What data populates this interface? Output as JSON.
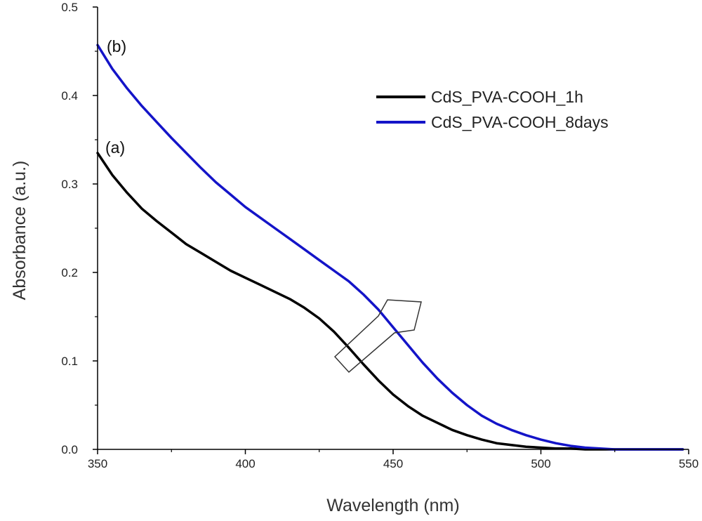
{
  "chart_data": {
    "type": "line",
    "title": "",
    "xlabel": "Wavelength (nm)",
    "ylabel": "Absorbance (a.u.)",
    "xlim": [
      350,
      550
    ],
    "ylim": [
      0.0,
      0.5
    ],
    "xticks": [
      "350",
      "400",
      "450",
      "500",
      "550"
    ],
    "yticks": [
      "0.0",
      "0.1",
      "0.2",
      "0.3",
      "0.4",
      "0.5"
    ],
    "grid": false,
    "legend_position": "top-right",
    "series": [
      {
        "name": "CdS_PVA-COOH_1h",
        "color": "#000000",
        "x": [
          350,
          355,
          360,
          365,
          370,
          375,
          380,
          385,
          390,
          395,
          400,
          405,
          410,
          415,
          420,
          425,
          430,
          435,
          440,
          445,
          450,
          455,
          460,
          465,
          470,
          475,
          480,
          485,
          490,
          495,
          500,
          505,
          510,
          515,
          520,
          525,
          530,
          535,
          540,
          545,
          548
        ],
        "y": [
          0.335,
          0.31,
          0.29,
          0.272,
          0.258,
          0.245,
          0.232,
          0.222,
          0.212,
          0.202,
          0.194,
          0.186,
          0.178,
          0.17,
          0.16,
          0.148,
          0.133,
          0.115,
          0.096,
          0.078,
          0.062,
          0.049,
          0.038,
          0.03,
          0.022,
          0.016,
          0.011,
          0.007,
          0.005,
          0.003,
          0.002,
          0.001,
          0.001,
          0.0,
          0.0,
          0.0,
          0.0,
          0.0,
          0.0,
          0.0,
          0.0
        ]
      },
      {
        "name": "CdS_PVA-COOH_8days",
        "color": "#1414c8",
        "x": [
          350,
          355,
          360,
          365,
          370,
          375,
          380,
          385,
          390,
          395,
          400,
          405,
          410,
          415,
          420,
          425,
          430,
          435,
          440,
          445,
          450,
          455,
          460,
          465,
          470,
          475,
          480,
          485,
          490,
          495,
          500,
          505,
          510,
          515,
          520,
          525,
          530,
          535,
          540,
          545,
          548
        ],
        "y": [
          0.457,
          0.43,
          0.408,
          0.388,
          0.37,
          0.352,
          0.335,
          0.318,
          0.302,
          0.288,
          0.274,
          0.262,
          0.25,
          0.238,
          0.226,
          0.214,
          0.202,
          0.19,
          0.175,
          0.158,
          0.138,
          0.118,
          0.098,
          0.08,
          0.064,
          0.05,
          0.038,
          0.029,
          0.022,
          0.016,
          0.011,
          0.007,
          0.004,
          0.002,
          0.001,
          0.0,
          0.0,
          0.0,
          0.0,
          0.0,
          0.0
        ]
      }
    ],
    "annotations": [
      {
        "text": "(a)",
        "series": 0,
        "x": 350
      },
      {
        "text": "(b)",
        "series": 1,
        "x": 350
      },
      {
        "text": "",
        "kind": "arrow",
        "direction": "up-right",
        "from": [
          432,
          0.1
        ],
        "to": [
          458,
          0.17
        ]
      }
    ]
  }
}
